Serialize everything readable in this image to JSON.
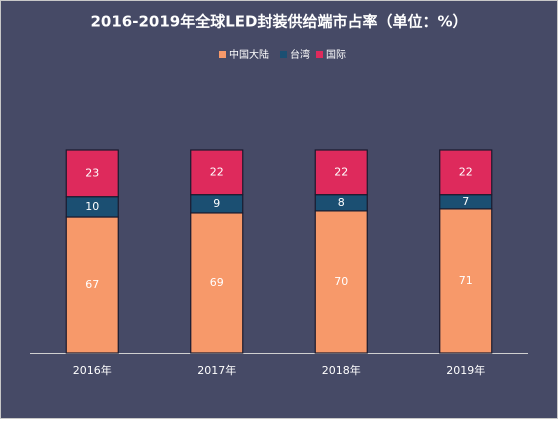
{
  "chart_data": {
    "type": "stacked-bar",
    "title": "2016-2019年全球LED封装供给端市占率（单位：%）",
    "categories": [
      "2016年",
      "2017年",
      "2018年",
      "2019年"
    ],
    "series": [
      {
        "name": "中国大陆",
        "color": "#f7996a",
        "values": [
          67,
          69,
          70,
          71
        ]
      },
      {
        "name": "台湾",
        "color": "#1b4f72",
        "values": [
          10,
          9,
          8,
          7
        ]
      },
      {
        "name": "国际",
        "color": "#de2a5c",
        "values": [
          23,
          22,
          22,
          22
        ]
      }
    ]
  }
}
